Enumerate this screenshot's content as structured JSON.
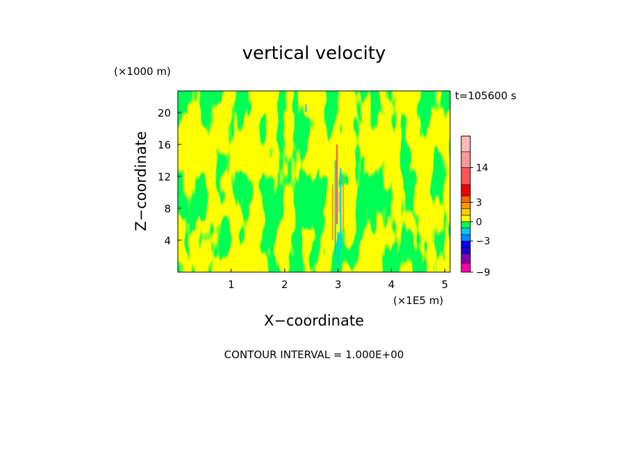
{
  "chart_data": {
    "type": "heatmap",
    "title": "vertical velocity",
    "xlabel": "X−coordinate",
    "ylabel": "Z−coordinate",
    "x_unit": "(×1E5 m)",
    "y_unit": "(×1000 m)",
    "time_label": "t=105600 s",
    "contour_interval_label": "CONTOUR INTERVAL = 1.000E+00",
    "xlim": [
      0,
      5.1
    ],
    "ylim": [
      0,
      22.7
    ],
    "x_ticks": [
      1,
      2,
      3,
      4,
      5
    ],
    "y_ticks": [
      4,
      8,
      12,
      16,
      20
    ],
    "dominant_colors": {
      "positive_small": "#ffff00",
      "negative_small": "#00ff55"
    },
    "colorbar": {
      "tick_labels": [
        "14",
        "3",
        "0",
        "−3",
        "−9"
      ],
      "tick_values": [
        14,
        3,
        0,
        -3,
        -9
      ],
      "levels": [
        {
          "from": -9,
          "to": -7,
          "color": "#ff00aa"
        },
        {
          "from": -7,
          "to": -5,
          "color": "#8800aa"
        },
        {
          "from": -5,
          "to": -4,
          "color": "#2200cc"
        },
        {
          "from": -4,
          "to": -3,
          "color": "#0000ff"
        },
        {
          "from": -3,
          "to": -2,
          "color": "#0088ff"
        },
        {
          "from": -2,
          "to": -1,
          "color": "#00ccff"
        },
        {
          "from": -1,
          "to": 0,
          "color": "#00ff55"
        },
        {
          "from": 0,
          "to": 1,
          "color": "#ffff00"
        },
        {
          "from": 1,
          "to": 2,
          "color": "#ffcc00"
        },
        {
          "from": 2,
          "to": 3,
          "color": "#ff9900"
        },
        {
          "from": 3,
          "to": 4,
          "color": "#ff6600"
        },
        {
          "from": 4,
          "to": 7,
          "color": "#ee0000"
        },
        {
          "from": 7,
          "to": 14,
          "color": "#ff5555"
        },
        {
          "from": 14,
          "to": 20,
          "color": "#ff9999"
        },
        {
          "from": 20,
          "to": 26,
          "color": "#ffbbbb"
        }
      ]
    }
  }
}
